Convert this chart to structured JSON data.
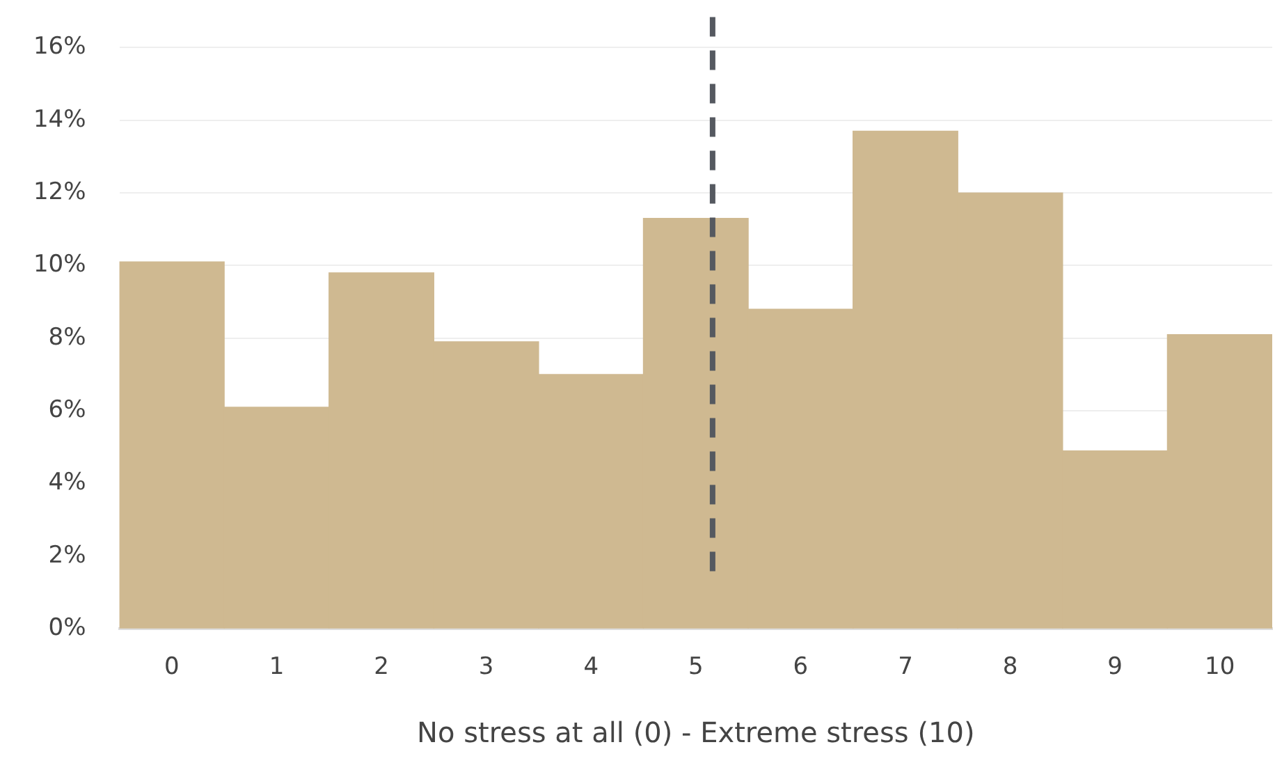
{
  "chart_data": {
    "type": "histogram",
    "xlabel": "No stress at all (0) - Extreme stress (10)",
    "bins": [
      -0.5,
      0.5,
      1.5,
      2.5,
      3.5,
      4.5,
      5.5,
      6.5,
      7.5,
      8.5,
      9.5,
      10.5
    ],
    "values": [
      10.1,
      6.1,
      9.8,
      7.9,
      7.0,
      11.3,
      8.8,
      13.7,
      12.0,
      4.9,
      8.1
    ],
    "color": "#cfb991",
    "xlim": [
      -0.5,
      10.5
    ],
    "xticks": [
      0,
      1,
      2,
      3,
      4,
      5,
      6,
      7,
      8,
      9,
      10
    ],
    "ylim": [
      0,
      16
    ],
    "yticks": [
      {
        "value": 0,
        "label": "0%"
      },
      {
        "value": 2,
        "label": "2%"
      },
      {
        "value": 4,
        "label": "4%"
      },
      {
        "value": 6,
        "label": "6%"
      },
      {
        "value": 8,
        "label": "8%"
      },
      {
        "value": 10,
        "label": "10%"
      },
      {
        "value": 12,
        "label": "12%"
      },
      {
        "value": 14,
        "label": "14%"
      },
      {
        "value": 16,
        "label": "16%"
      }
    ],
    "grid": "y",
    "ref_lines": [
      {
        "axis": "x",
        "value": 5.16,
        "color": "#555960",
        "line_style": "dashed"
      }
    ]
  }
}
